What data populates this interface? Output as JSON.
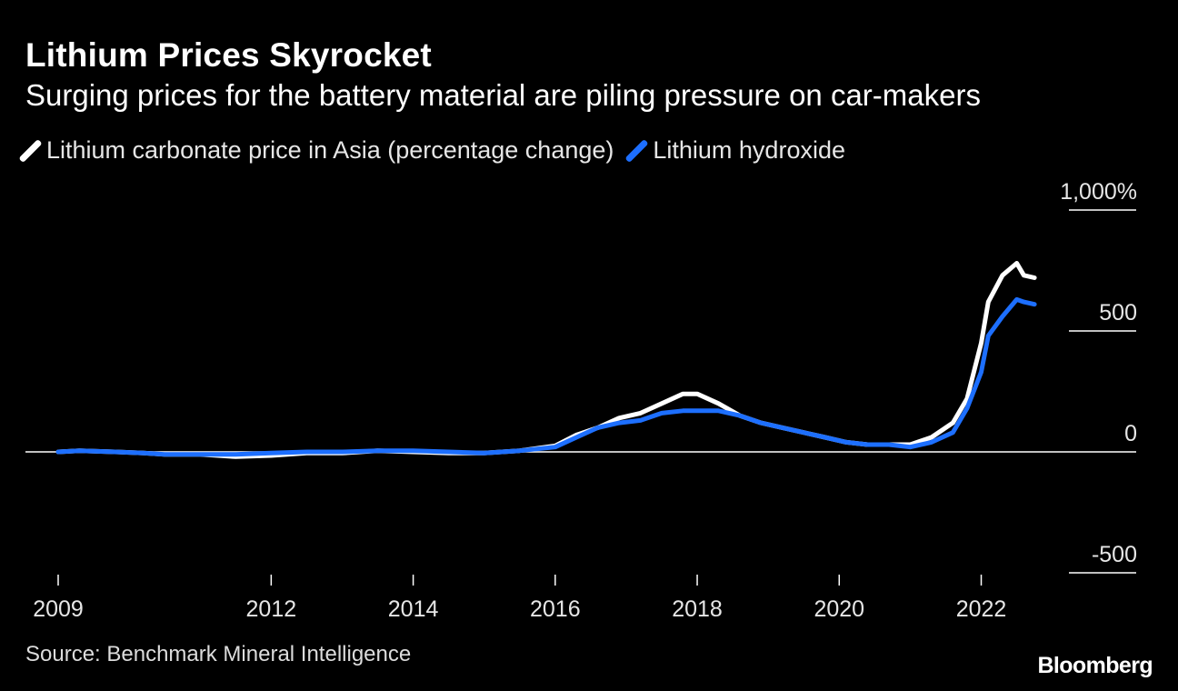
{
  "header": {
    "title": "Lithium Prices Skyrocket",
    "subtitle": "Surging prices for the battery material are piling pressure on car-makers"
  },
  "footer": {
    "source": "Source: Benchmark Mineral Intelligence",
    "brand": "Bloomberg"
  },
  "chart_data": {
    "type": "line",
    "title": "Lithium Prices Skyrocket",
    "subtitle": "Surging prices for the battery material are piling pressure on car-makers",
    "xlabel": "",
    "ylabel": "",
    "xlim": [
      2009,
      2022.8
    ],
    "ylim": [
      -500,
      1000
    ],
    "grid": false,
    "legend": "top-left",
    "x_ticks": [
      2009,
      2012,
      2014,
      2016,
      2018,
      2020,
      2022
    ],
    "x_tick_labels": [
      "2009",
      "2012",
      "2014",
      "2016",
      "2018",
      "2020",
      "2022"
    ],
    "y_ticks": [
      1000,
      500,
      0,
      -500
    ],
    "y_tick_labels": [
      "1,000%",
      "500",
      "0",
      "-500"
    ],
    "series": [
      {
        "name": "Lithium carbonate price in Asia (percentage change)",
        "color": "#ffffff",
        "points": [
          [
            2009.0,
            0
          ],
          [
            2009.3,
            5
          ],
          [
            2009.8,
            0
          ],
          [
            2010.2,
            -5
          ],
          [
            2010.5,
            -10
          ],
          [
            2011.0,
            -10
          ],
          [
            2011.5,
            -20
          ],
          [
            2012.0,
            -15
          ],
          [
            2012.5,
            -5
          ],
          [
            2013.0,
            -5
          ],
          [
            2013.5,
            5
          ],
          [
            2014.0,
            0
          ],
          [
            2014.5,
            -5
          ],
          [
            2015.0,
            -5
          ],
          [
            2015.5,
            5
          ],
          [
            2016.0,
            25
          ],
          [
            2016.3,
            70
          ],
          [
            2016.6,
            100
          ],
          [
            2016.9,
            140
          ],
          [
            2017.2,
            160
          ],
          [
            2017.5,
            200
          ],
          [
            2017.8,
            240
          ],
          [
            2018.0,
            240
          ],
          [
            2018.3,
            200
          ],
          [
            2018.6,
            150
          ],
          [
            2018.9,
            120
          ],
          [
            2019.2,
            100
          ],
          [
            2019.5,
            80
          ],
          [
            2019.8,
            60
          ],
          [
            2020.1,
            40
          ],
          [
            2020.4,
            30
          ],
          [
            2020.7,
            30
          ],
          [
            2021.0,
            30
          ],
          [
            2021.3,
            60
          ],
          [
            2021.6,
            120
          ],
          [
            2021.8,
            220
          ],
          [
            2022.0,
            450
          ],
          [
            2022.1,
            620
          ],
          [
            2022.3,
            730
          ],
          [
            2022.5,
            780
          ],
          [
            2022.6,
            730
          ],
          [
            2022.75,
            720
          ]
        ]
      },
      {
        "name": "Lithium hydroxide",
        "color": "#1d6fff",
        "points": [
          [
            2009.0,
            0
          ],
          [
            2009.3,
            5
          ],
          [
            2009.8,
            0
          ],
          [
            2010.2,
            -5
          ],
          [
            2010.5,
            -10
          ],
          [
            2011.0,
            -10
          ],
          [
            2011.5,
            -10
          ],
          [
            2012.0,
            -5
          ],
          [
            2012.5,
            0
          ],
          [
            2013.0,
            0
          ],
          [
            2013.5,
            5
          ],
          [
            2014.0,
            5
          ],
          [
            2014.5,
            0
          ],
          [
            2015.0,
            -5
          ],
          [
            2015.5,
            5
          ],
          [
            2016.0,
            20
          ],
          [
            2016.3,
            60
          ],
          [
            2016.6,
            100
          ],
          [
            2016.9,
            120
          ],
          [
            2017.2,
            130
          ],
          [
            2017.5,
            160
          ],
          [
            2017.8,
            170
          ],
          [
            2018.0,
            170
          ],
          [
            2018.3,
            170
          ],
          [
            2018.6,
            150
          ],
          [
            2018.9,
            120
          ],
          [
            2019.2,
            100
          ],
          [
            2019.5,
            80
          ],
          [
            2019.8,
            60
          ],
          [
            2020.1,
            40
          ],
          [
            2020.4,
            30
          ],
          [
            2020.7,
            30
          ],
          [
            2021.0,
            20
          ],
          [
            2021.3,
            40
          ],
          [
            2021.6,
            80
          ],
          [
            2021.8,
            180
          ],
          [
            2022.0,
            330
          ],
          [
            2022.1,
            480
          ],
          [
            2022.3,
            560
          ],
          [
            2022.5,
            630
          ],
          [
            2022.6,
            620
          ],
          [
            2022.75,
            610
          ]
        ]
      }
    ]
  }
}
